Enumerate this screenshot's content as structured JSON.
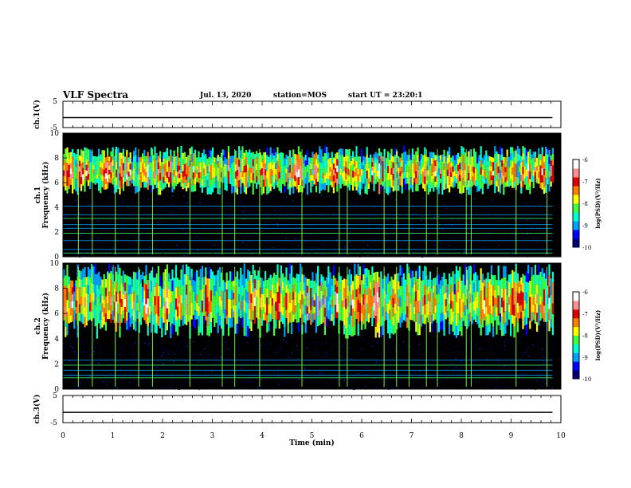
{
  "header": {
    "title": "VLF Spectra",
    "date": "Jul. 13, 2020",
    "station": "station=MOS",
    "start": "start UT = 23:20:1"
  },
  "chart_data": [
    {
      "type": "line",
      "panel": "ch1-waveform",
      "ylabel": "ch.1(V)",
      "ylim": [
        -5,
        5
      ],
      "yticks": [
        "5",
        "-5"
      ],
      "x": [
        0,
        9.83
      ],
      "series": [
        {
          "values": [
            -1.2,
            -1.2
          ]
        }
      ]
    },
    {
      "type": "heatmap",
      "panel": "ch1-spectrogram",
      "ylabel": "ch.1\nFrequency (kHz)",
      "ylim": [
        0,
        10
      ],
      "yticks": [
        "0",
        "2",
        "4",
        "6",
        "8",
        "10"
      ],
      "xlim": [
        0,
        10
      ],
      "data_xmax": 9.83,
      "colorbar": {
        "label": "log(PSD)(V²/Hz)",
        "range": [
          -10,
          -6
        ],
        "ticks": [
          "-6",
          "-7",
          "-8",
          "-9",
          "-10"
        ]
      },
      "band_khz": [
        5,
        9
      ],
      "peak_khz": 6.8,
      "saturation_khz": 9.4,
      "lines_khz": [
        0.3,
        0.6,
        1.3,
        1.9,
        2.3,
        2.6,
        3.1,
        3.4,
        4.1
      ],
      "sferic_minutes": [
        0.31,
        0.59,
        1.05,
        1.52,
        1.8,
        2.55,
        3.2,
        3.45,
        3.95,
        4.8,
        5.55,
        5.71,
        6.45,
        6.7,
        6.95,
        7.3,
        7.52,
        8.1,
        8.2,
        9.1,
        9.72
      ]
    },
    {
      "type": "heatmap",
      "panel": "ch2-spectrogram",
      "ylabel": "ch.2\nFrequency (kHz)",
      "ylim": [
        0,
        10
      ],
      "yticks": [
        "0",
        "2",
        "4",
        "6",
        "8",
        "10"
      ],
      "xlim": [
        0,
        10
      ],
      "data_xmax": 9.83,
      "colorbar": {
        "label": "log(PSD)(V²/Hz)",
        "range": [
          -10,
          -6
        ],
        "ticks": [
          "-6",
          "-7",
          "-8",
          "-9",
          "-10"
        ]
      },
      "band_khz": [
        4,
        10
      ],
      "peak_khz": 6.8,
      "lines_khz": [
        0.9,
        1.1,
        1.5,
        1.9,
        2.3
      ],
      "sferic_minutes": [
        0.31,
        0.59,
        1.05,
        1.52,
        1.8,
        2.55,
        3.2,
        3.45,
        3.95,
        4.8,
        5.55,
        5.71,
        6.45,
        6.7,
        6.95,
        7.3,
        7.52,
        8.1,
        8.2,
        9.1,
        9.72
      ]
    },
    {
      "type": "line",
      "panel": "ch3-waveform",
      "ylabel": "ch.3(V)",
      "ylim": [
        -5,
        5
      ],
      "yticks": [
        "5",
        "-5"
      ],
      "x": [
        0,
        9.83
      ],
      "series": [
        {
          "values": [
            -1.2,
            -1.2
          ]
        }
      ]
    }
  ],
  "xaxis": {
    "label": "Time (min)",
    "ticks": [
      "0",
      "1",
      "2",
      "3",
      "4",
      "5",
      "6",
      "7",
      "8",
      "9",
      "10"
    ],
    "range": [
      0,
      10
    ]
  },
  "colors": {
    "background": "#000000",
    "colormap": [
      "#00007a",
      "#0000ff",
      "#00a0ff",
      "#00ffd0",
      "#40ff40",
      "#ffff00",
      "#ff8000",
      "#e00000",
      "#ff9090",
      "#ffffff"
    ]
  }
}
